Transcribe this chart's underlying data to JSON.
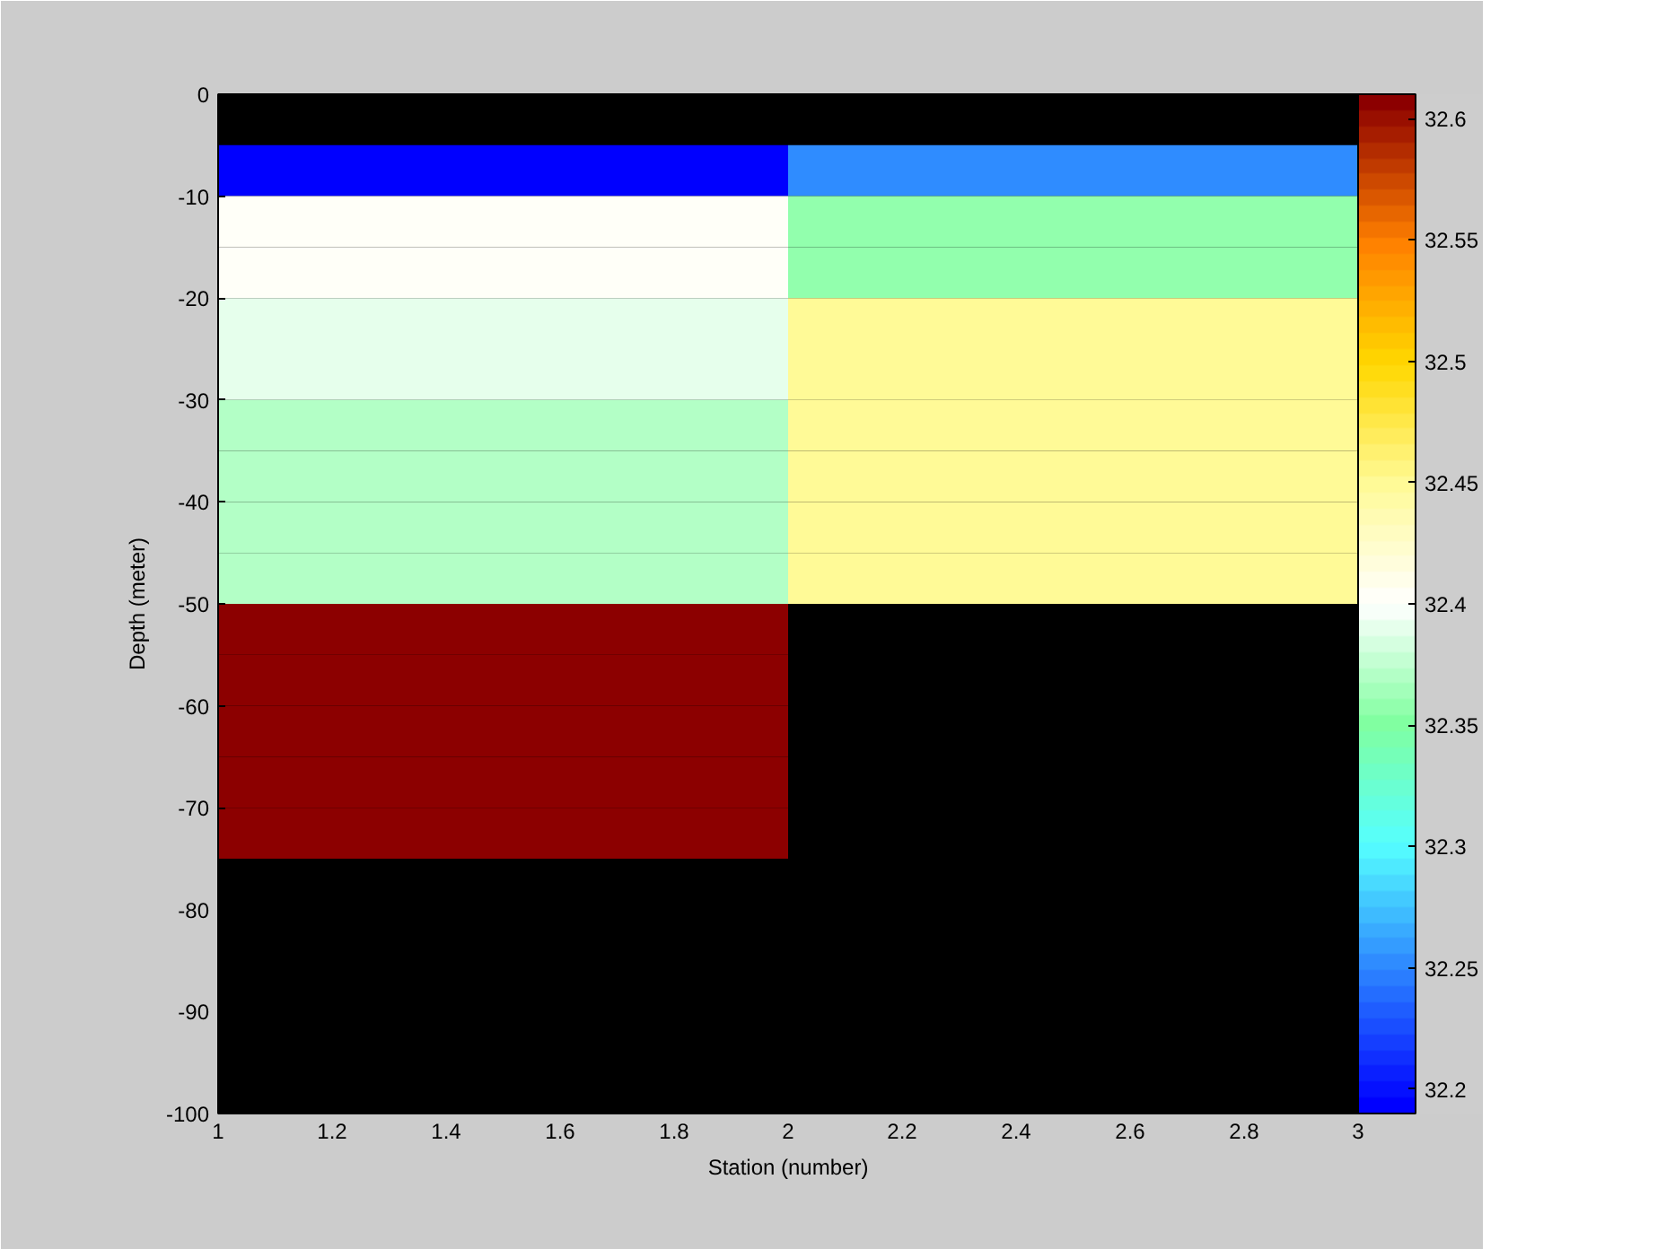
{
  "chart_data": {
    "type": "heatmap",
    "xlabel": "Station (number)",
    "ylabel": "Depth (meter)",
    "x": [
      1.5,
      2.5
    ],
    "y": [
      -7.5,
      -12.5,
      -17.5,
      -22.5,
      -27.5,
      -32.5,
      -37.5,
      -42.5,
      -47.5,
      -52.5,
      -57.5,
      -62.5,
      -67.5,
      -72.5
    ],
    "cells": [
      [
        32.19,
        32.25
      ],
      [
        32.4,
        32.36
      ],
      [
        32.4,
        32.36
      ],
      [
        32.39,
        32.45
      ],
      [
        32.39,
        32.45
      ],
      [
        32.37,
        32.45
      ],
      [
        32.37,
        32.45
      ],
      [
        32.37,
        32.45
      ],
      [
        32.37,
        32.45
      ],
      [
        32.61,
        null
      ],
      [
        32.61,
        null
      ],
      [
        32.61,
        null
      ],
      [
        32.61,
        null
      ],
      [
        32.61,
        null
      ]
    ],
    "xlim": [
      1,
      3
    ],
    "ylim": [
      -100,
      0
    ],
    "xticks": [
      1,
      1.2,
      1.4,
      1.6,
      1.8,
      2,
      2.2,
      2.4,
      2.6,
      2.8,
      3
    ],
    "yticks": [
      -100,
      -90,
      -80,
      -70,
      -60,
      -50,
      -40,
      -30,
      -20,
      -10,
      0
    ],
    "clim": [
      32.19,
      32.61
    ],
    "cticks": [
      32.2,
      32.25,
      32.3,
      32.35,
      32.4,
      32.45,
      32.5,
      32.55,
      32.6
    ],
    "grid": false
  }
}
